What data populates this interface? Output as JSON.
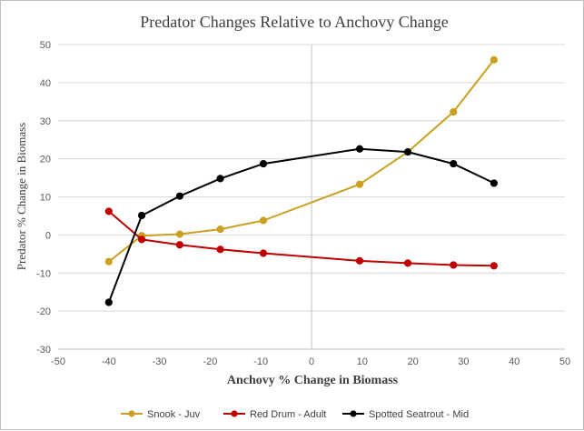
{
  "chart_data": {
    "type": "scatter",
    "title": "Predator Changes Relative to Anchovy Change",
    "xlabel": "Anchovy % Change in Biomass",
    "ylabel": "Predator % Change in Biomass",
    "xlim": [
      -50,
      50
    ],
    "ylim": [
      -30,
      50
    ],
    "xticks": [
      -50,
      -40,
      -30,
      -20,
      -10,
      0,
      10,
      20,
      30,
      40,
      50
    ],
    "yticks": [
      -30,
      -20,
      -10,
      0,
      10,
      20,
      30,
      40,
      50
    ],
    "grid": "horizontal",
    "legend": "bottom",
    "series": [
      {
        "name": "Snook - Juv",
        "color": "#C9A020",
        "x": [
          -40,
          -33.5,
          -26,
          -18,
          -9.5,
          9.5,
          19,
          28,
          36
        ],
        "y": [
          -7,
          -0.2,
          0.2,
          1.5,
          3.8,
          13.3,
          21.8,
          32.3,
          46
        ]
      },
      {
        "name": "Red Drum - Adult",
        "color": "#C00000",
        "x": [
          -40,
          -33.5,
          -26,
          -18,
          -9.5,
          9.5,
          19,
          28,
          36
        ],
        "y": [
          6.2,
          -1.2,
          -2.6,
          -3.8,
          -4.8,
          -6.8,
          -7.4,
          -7.9,
          -8.1
        ]
      },
      {
        "name": "Spotted Seatrout - Mid",
        "color": "#000000",
        "x": [
          -40,
          -33.5,
          -26,
          -18,
          -9.5,
          9.5,
          19,
          28,
          36
        ],
        "y": [
          -17.7,
          5.1,
          10.2,
          14.8,
          18.7,
          22.6,
          21.8,
          18.7,
          13.6
        ]
      }
    ]
  }
}
